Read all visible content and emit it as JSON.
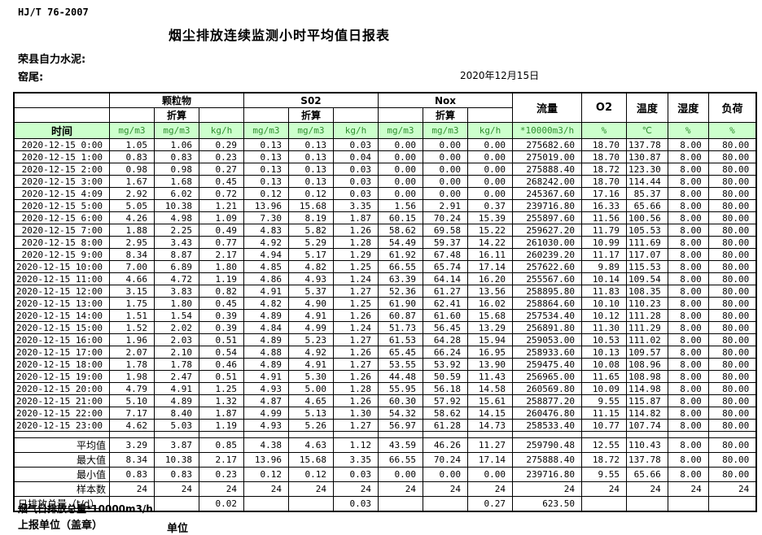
{
  "page": {
    "standard_code": "HJ/T  76-2007",
    "title": "烟尘排放连续监测小时平均值日报表",
    "company": "荣县自力水泥:",
    "location": "窑尾:",
    "date": "2020年12月15日"
  },
  "colors": {
    "header_bg": "#ccffcc",
    "unit_text": "#2f8f2f"
  },
  "table": {
    "groups": [
      "颗粒物",
      "S02",
      "Nox"
    ],
    "converted_label": "折算",
    "tall_headers": [
      "流量",
      "O2",
      "温度",
      "湿度",
      "负荷"
    ],
    "unit_row": [
      "时间",
      "mg/m3",
      "mg/m3",
      "kg/h",
      "mg/m3",
      "mg/m3",
      "kg/h",
      "mg/m3",
      "mg/m3",
      "kg/h",
      "*10000m3/h",
      "%",
      "℃",
      "%",
      "%"
    ],
    "rows": [
      [
        "2020-12-15 0:00",
        "1.05",
        "1.06",
        "0.29",
        "0.13",
        "0.13",
        "0.03",
        "0.00",
        "0.00",
        "0.00",
        "275682.60",
        "18.70",
        "137.78",
        "8.00",
        "80.00"
      ],
      [
        "2020-12-15 1:00",
        "0.83",
        "0.83",
        "0.23",
        "0.13",
        "0.13",
        "0.04",
        "0.00",
        "0.00",
        "0.00",
        "275019.00",
        "18.70",
        "130.87",
        "8.00",
        "80.00"
      ],
      [
        "2020-12-15 2:00",
        "0.98",
        "0.98",
        "0.27",
        "0.13",
        "0.13",
        "0.03",
        "0.00",
        "0.00",
        "0.00",
        "275888.40",
        "18.72",
        "123.30",
        "8.00",
        "80.00"
      ],
      [
        "2020-12-15 3:00",
        "1.67",
        "1.68",
        "0.45",
        "0.13",
        "0.13",
        "0.03",
        "0.00",
        "0.00",
        "0.00",
        "268242.00",
        "18.70",
        "114.44",
        "8.00",
        "80.00"
      ],
      [
        "2020-12-15 4:09",
        "2.92",
        "6.02",
        "0.72",
        "0.12",
        "0.12",
        "0.03",
        "0.00",
        "0.00",
        "0.00",
        "245367.60",
        "17.16",
        "85.37",
        "8.00",
        "80.00"
      ],
      [
        "2020-12-15 5:00",
        "5.05",
        "10.38",
        "1.21",
        "13.96",
        "15.68",
        "3.35",
        "1.56",
        "2.91",
        "0.37",
        "239716.80",
        "16.33",
        "65.66",
        "8.00",
        "80.00"
      ],
      [
        "2020-12-15 6:00",
        "4.26",
        "4.98",
        "1.09",
        "7.30",
        "8.19",
        "1.87",
        "60.15",
        "70.24",
        "15.39",
        "255897.60",
        "11.56",
        "100.56",
        "8.00",
        "80.00"
      ],
      [
        "2020-12-15 7:00",
        "1.88",
        "2.25",
        "0.49",
        "4.83",
        "5.82",
        "1.26",
        "58.62",
        "69.58",
        "15.22",
        "259627.20",
        "11.79",
        "105.53",
        "8.00",
        "80.00"
      ],
      [
        "2020-12-15 8:00",
        "2.95",
        "3.43",
        "0.77",
        "4.92",
        "5.29",
        "1.28",
        "54.49",
        "59.37",
        "14.22",
        "261030.00",
        "10.99",
        "111.69",
        "8.00",
        "80.00"
      ],
      [
        "2020-12-15 9:00",
        "8.34",
        "8.87",
        "2.17",
        "4.94",
        "5.17",
        "1.29",
        "61.92",
        "67.48",
        "16.11",
        "260239.20",
        "11.17",
        "117.07",
        "8.00",
        "80.00"
      ],
      [
        "2020-12-15 10:00",
        "7.00",
        "6.89",
        "1.80",
        "4.85",
        "4.82",
        "1.25",
        "66.55",
        "65.74",
        "17.14",
        "257622.60",
        "9.89",
        "115.53",
        "8.00",
        "80.00"
      ],
      [
        "2020-12-15 11:00",
        "4.66",
        "4.72",
        "1.19",
        "4.86",
        "4.93",
        "1.24",
        "63.39",
        "64.14",
        "16.20",
        "255567.60",
        "10.14",
        "109.54",
        "8.00",
        "80.00"
      ],
      [
        "2020-12-15 12:00",
        "3.15",
        "3.83",
        "0.82",
        "4.91",
        "5.37",
        "1.27",
        "52.36",
        "61.27",
        "13.56",
        "258895.80",
        "11.83",
        "108.35",
        "8.00",
        "80.00"
      ],
      [
        "2020-12-15 13:00",
        "1.75",
        "1.80",
        "0.45",
        "4.82",
        "4.90",
        "1.25",
        "61.90",
        "62.41",
        "16.02",
        "258864.60",
        "10.10",
        "110.23",
        "8.00",
        "80.00"
      ],
      [
        "2020-12-15 14:00",
        "1.51",
        "1.54",
        "0.39",
        "4.89",
        "4.91",
        "1.26",
        "60.87",
        "61.60",
        "15.68",
        "257534.40",
        "10.12",
        "111.28",
        "8.00",
        "80.00"
      ],
      [
        "2020-12-15 15:00",
        "1.52",
        "2.02",
        "0.39",
        "4.84",
        "4.99",
        "1.24",
        "51.73",
        "56.45",
        "13.29",
        "256891.80",
        "11.30",
        "111.29",
        "8.00",
        "80.00"
      ],
      [
        "2020-12-15 16:00",
        "1.96",
        "2.03",
        "0.51",
        "4.89",
        "5.23",
        "1.27",
        "61.53",
        "64.28",
        "15.94",
        "259053.00",
        "10.53",
        "111.02",
        "8.00",
        "80.00"
      ],
      [
        "2020-12-15 17:00",
        "2.07",
        "2.10",
        "0.54",
        "4.88",
        "4.92",
        "1.26",
        "65.45",
        "66.24",
        "16.95",
        "258933.60",
        "10.13",
        "109.57",
        "8.00",
        "80.00"
      ],
      [
        "2020-12-15 18:00",
        "1.78",
        "1.78",
        "0.46",
        "4.89",
        "4.91",
        "1.27",
        "53.55",
        "53.92",
        "13.90",
        "259475.40",
        "10.08",
        "108.96",
        "8.00",
        "80.00"
      ],
      [
        "2020-12-15 19:00",
        "1.98",
        "2.47",
        "0.51",
        "4.91",
        "5.30",
        "1.26",
        "44.48",
        "50.59",
        "11.43",
        "256965.00",
        "11.65",
        "108.98",
        "8.00",
        "80.00"
      ],
      [
        "2020-12-15 20:00",
        "4.79",
        "4.91",
        "1.25",
        "4.93",
        "5.00",
        "1.28",
        "55.95",
        "56.18",
        "14.58",
        "260569.80",
        "10.09",
        "114.98",
        "8.00",
        "80.00"
      ],
      [
        "2020-12-15 21:00",
        "5.10",
        "4.89",
        "1.32",
        "4.87",
        "4.65",
        "1.26",
        "60.30",
        "57.92",
        "15.61",
        "258877.20",
        "9.55",
        "115.87",
        "8.00",
        "80.00"
      ],
      [
        "2020-12-15 22:00",
        "7.17",
        "8.40",
        "1.87",
        "4.99",
        "5.13",
        "1.30",
        "54.32",
        "58.62",
        "14.15",
        "260476.80",
        "11.15",
        "114.82",
        "8.00",
        "80.00"
      ],
      [
        "2020-12-15 23:00",
        "4.62",
        "5.03",
        "1.19",
        "4.93",
        "5.26",
        "1.27",
        "56.97",
        "61.28",
        "14.73",
        "258533.40",
        "10.77",
        "107.74",
        "8.00",
        "80.00"
      ]
    ],
    "summary_rows": [
      {
        "label": "平均值",
        "values": [
          "3.29",
          "3.87",
          "0.85",
          "4.38",
          "4.63",
          "1.12",
          "43.59",
          "46.26",
          "11.27",
          "259790.48",
          "12.55",
          "110.43",
          "8.00",
          "80.00"
        ]
      },
      {
        "label": "最大值",
        "values": [
          "8.34",
          "10.38",
          "2.17",
          "13.96",
          "15.68",
          "3.35",
          "66.55",
          "70.24",
          "17.14",
          "275888.40",
          "18.72",
          "137.78",
          "8.00",
          "80.00"
        ]
      },
      {
        "label": "最小值",
        "values": [
          "0.83",
          "0.83",
          "0.23",
          "0.12",
          "0.12",
          "0.03",
          "0.00",
          "0.00",
          "0.00",
          "239716.80",
          "9.55",
          "65.66",
          "8.00",
          "80.00"
        ]
      },
      {
        "label": "样本数",
        "values": [
          "24",
          "24",
          "24",
          "24",
          "24",
          "24",
          "24",
          "24",
          "24",
          "24",
          "24",
          "24",
          "24",
          "24"
        ]
      }
    ],
    "total_row": {
      "label": "日排放总量（t/d）",
      "values": [
        "",
        "",
        "0.02",
        "",
        "",
        "0.03",
        "",
        "",
        "0.27",
        "623.50",
        "",
        "",
        "",
        ""
      ]
    }
  },
  "footer": {
    "note": "烟气日排放总量*10000m3/h",
    "report_unit_label": "上报单位（盖章）",
    "unit_label": "单位"
  }
}
